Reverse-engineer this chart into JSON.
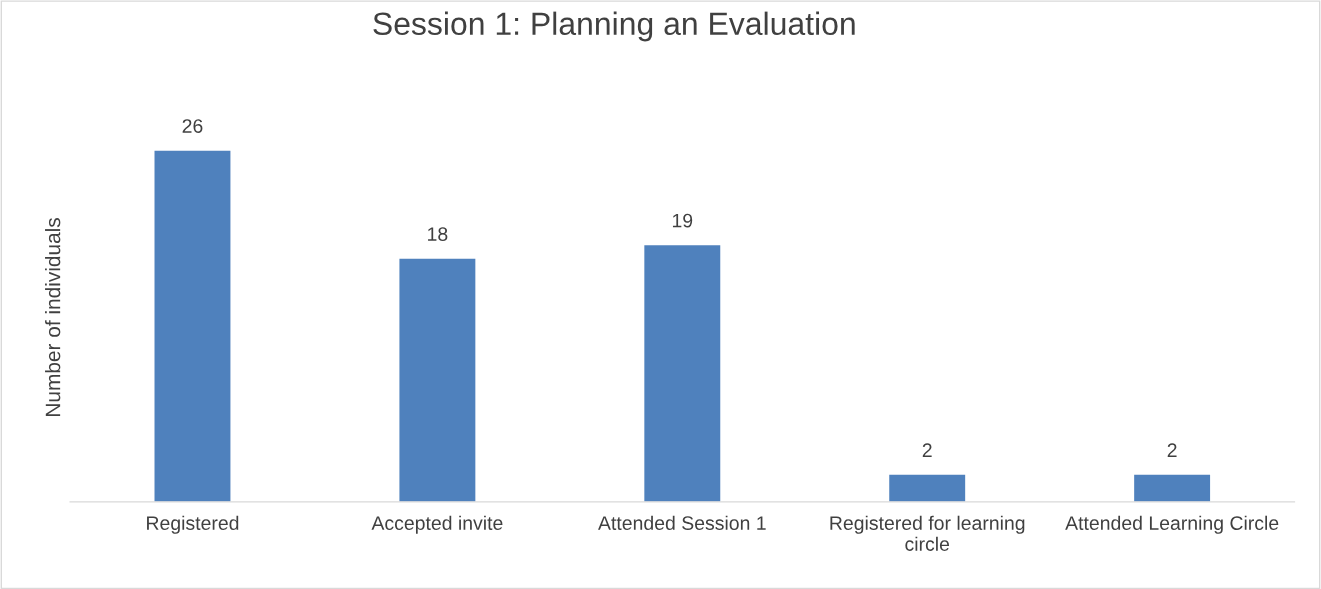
{
  "chart_data": {
    "type": "bar",
    "title": "Session 1: Planning an Evaluation",
    "ylabel": "Number of individuals",
    "categories": [
      "Registered",
      "Accepted invite",
      "Attended Session 1",
      "Registered for learning circle",
      "Attended Learning Circle"
    ],
    "values": [
      26,
      18,
      19,
      2,
      2
    ],
    "color": "#4f81bd",
    "data_labels": true,
    "grid": false,
    "legend": false
  }
}
